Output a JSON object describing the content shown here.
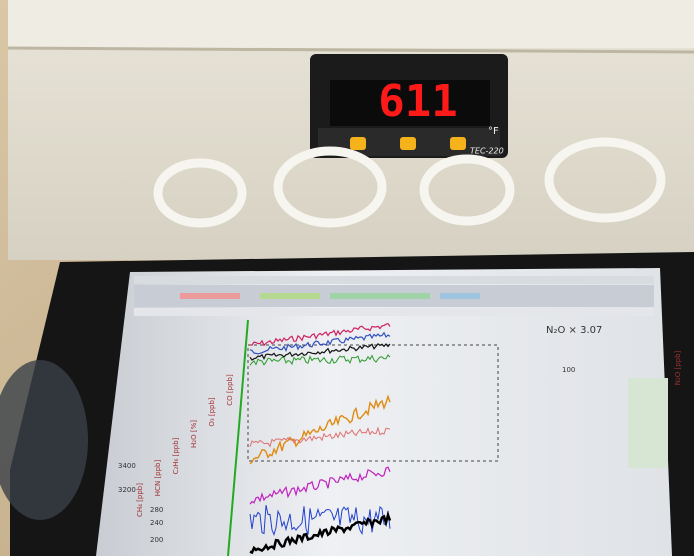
{
  "controller": {
    "display": "611",
    "unit": "°F",
    "model": "TEC-220"
  },
  "screen": {
    "annotation": "N₂O × 3.07",
    "axis_labels": [
      "CH₄ [ppb]",
      "HCN [ppb]",
      "C₂H₆ [ppb]",
      "H₂O [%]",
      "O₃ [ppb]",
      "CO [ppb]",
      "N₂O [ppb]"
    ],
    "tick_labels": [
      "3400",
      "3200",
      "240",
      "200",
      "100",
      "280"
    ]
  }
}
